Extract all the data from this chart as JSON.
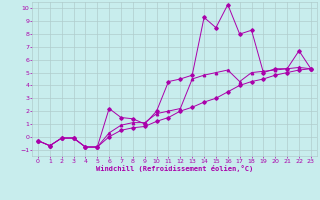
{
  "xlabel": "Windchill (Refroidissement éolien,°C)",
  "bg_color": "#c8eded",
  "grid_color": "#b0cccc",
  "line_color": "#aa00aa",
  "xlim": [
    -0.5,
    23.5
  ],
  "ylim": [
    -1.5,
    10.5
  ],
  "xticks": [
    0,
    1,
    2,
    3,
    4,
    5,
    6,
    7,
    8,
    9,
    10,
    11,
    12,
    13,
    14,
    15,
    16,
    17,
    18,
    19,
    20,
    21,
    22,
    23
  ],
  "yticks": [
    -1,
    0,
    1,
    2,
    3,
    4,
    5,
    6,
    7,
    8,
    9,
    10
  ],
  "series1_x": [
    0,
    1,
    2,
    3,
    4,
    5,
    6,
    7,
    8,
    9,
    10,
    11,
    12,
    13,
    14,
    15,
    16,
    17,
    18,
    19,
    20,
    21,
    22,
    23
  ],
  "series1_y": [
    -0.3,
    -0.7,
    -0.1,
    -0.1,
    -0.8,
    -0.8,
    2.2,
    1.5,
    1.4,
    1.0,
    2.0,
    4.3,
    4.5,
    4.8,
    9.3,
    8.5,
    10.3,
    8.0,
    8.3,
    5.0,
    5.3,
    5.3,
    6.7,
    5.3
  ],
  "series2_x": [
    0,
    1,
    2,
    3,
    4,
    5,
    6,
    7,
    8,
    9,
    10,
    11,
    12,
    13,
    14,
    15,
    16,
    17,
    18,
    19,
    20,
    21,
    22,
    23
  ],
  "series2_y": [
    -0.3,
    -0.7,
    -0.1,
    -0.1,
    -0.8,
    -0.8,
    0.3,
    0.9,
    1.1,
    1.1,
    1.8,
    2.0,
    2.2,
    4.5,
    4.8,
    5.0,
    5.2,
    4.3,
    5.0,
    5.1,
    5.2,
    5.3,
    5.4,
    5.3
  ],
  "series3_x": [
    0,
    1,
    2,
    3,
    4,
    5,
    6,
    7,
    8,
    9,
    10,
    11,
    12,
    13,
    14,
    15,
    16,
    17,
    18,
    19,
    20,
    21,
    22,
    23
  ],
  "series3_y": [
    -0.3,
    -0.7,
    -0.1,
    -0.1,
    -0.8,
    -0.8,
    0.0,
    0.5,
    0.7,
    0.8,
    1.2,
    1.5,
    2.0,
    2.3,
    2.7,
    3.0,
    3.5,
    4.0,
    4.3,
    4.5,
    4.8,
    5.0,
    5.2,
    5.3
  ],
  "tick_labelsize": 4.5,
  "lw": 0.7,
  "ms": 1.8
}
